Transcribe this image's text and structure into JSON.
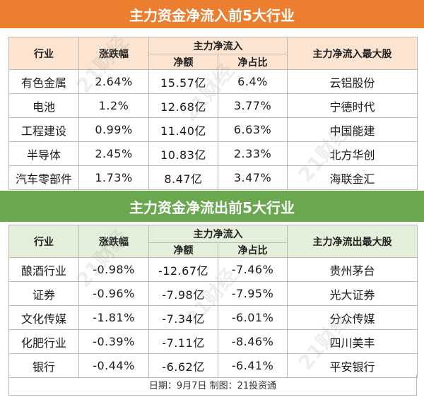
{
  "inflow": {
    "title": "主力资金净流入前5大行业",
    "headers": {
      "industry": "行业",
      "change": "涨跌幅",
      "group": "主力净流入",
      "amount": "净额",
      "ratio": "净占比",
      "stock": "主力净流入最大股"
    },
    "rows": [
      {
        "industry": "有色金属",
        "change": "2.64%",
        "amount": "15.57亿",
        "ratio": "6.4%",
        "stock": "云铝股份"
      },
      {
        "industry": "电池",
        "change": "1.2%",
        "amount": "12.68亿",
        "ratio": "3.77%",
        "stock": "宁德时代"
      },
      {
        "industry": "工程建设",
        "change": "0.99%",
        "amount": "11.40亿",
        "ratio": "6.63%",
        "stock": "中国能建"
      },
      {
        "industry": "半导体",
        "change": "2.45%",
        "amount": "10.83亿",
        "ratio": "2.33%",
        "stock": "北方华创"
      },
      {
        "industry": "汽车零部件",
        "change": "1.73%",
        "amount": "8.47亿",
        "ratio": "3.47%",
        "stock": "海联金汇"
      }
    ]
  },
  "outflow": {
    "title": "主力资金净流出前5大行业",
    "headers": {
      "industry": "行业",
      "change": "涨跌幅",
      "group": "主力净流入",
      "amount": "净额",
      "ratio": "净占比",
      "stock": "主力净流出最大股"
    },
    "rows": [
      {
        "industry": "酿酒行业",
        "change": "-0.98%",
        "amount": "-12.67亿",
        "ratio": "-7.46%",
        "stock": "贵州茅台"
      },
      {
        "industry": "证券",
        "change": "-0.96%",
        "amount": "-7.98亿",
        "ratio": "-7.95%",
        "stock": "光大证券"
      },
      {
        "industry": "文化传媒",
        "change": "-1.81%",
        "amount": "-7.34亿",
        "ratio": "-6.01%",
        "stock": "分众传媒"
      },
      {
        "industry": "化肥行业",
        "change": "-0.39%",
        "amount": "-7.11亿",
        "ratio": "-8.46%",
        "stock": "四川美丰"
      },
      {
        "industry": "银行",
        "change": "-0.44%",
        "amount": "-6.62亿",
        "ratio": "-6.41%",
        "stock": "平安银行"
      }
    ]
  },
  "footer": "日期：9月7日 制图：21投资通",
  "watermark": "21财经",
  "colors": {
    "inflow_header": "#ec7f2f",
    "outflow_header": "#6aa84f",
    "inflow_subheader": "#fce4d1",
    "outflow_subheader": "#e3efd9"
  }
}
